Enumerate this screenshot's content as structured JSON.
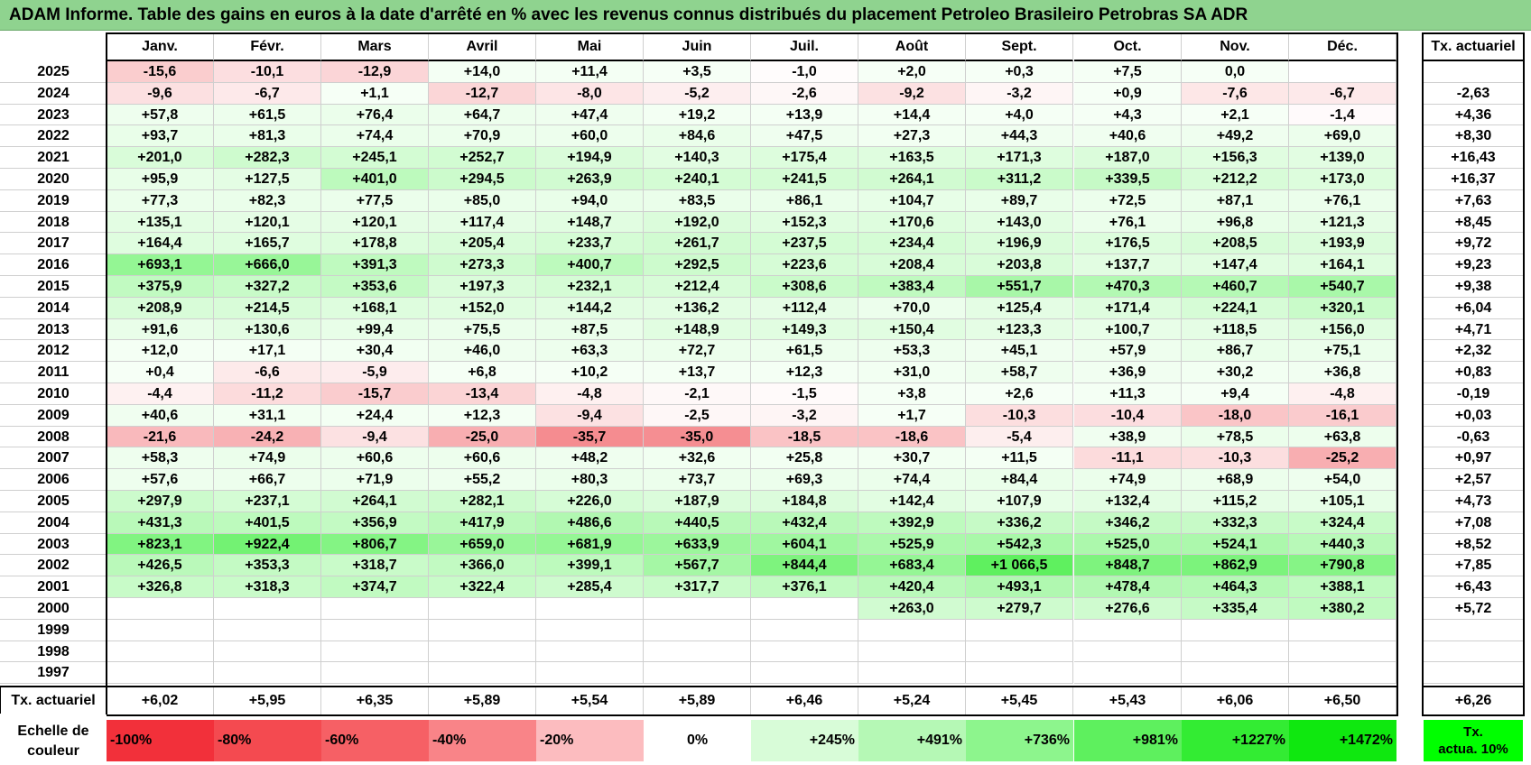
{
  "title": "ADAM Informe. Table des gains en euros à la date d'arrêté en % avec les revenus connus distribués du placement Petroleo Brasileiro Petrobras SA ADR",
  "months": [
    "Janv.",
    "Févr.",
    "Mars",
    "Avril",
    "Mai",
    "Juin",
    "Juil.",
    "Août",
    "Sept.",
    "Oct.",
    "Nov.",
    "Déc."
  ],
  "rate_header": "Tx. actuariel",
  "rows": [
    {
      "year": "2025",
      "values": [
        "-15,6",
        "-10,1",
        "-12,9",
        "+14,0",
        "+11,4",
        "+3,5",
        "-1,0",
        "+2,0",
        "+0,3",
        "+7,5",
        "0,0",
        ""
      ],
      "rate": ""
    },
    {
      "year": "2024",
      "values": [
        "-9,6",
        "-6,7",
        "+1,1",
        "-12,7",
        "-8,0",
        "-5,2",
        "-2,6",
        "-9,2",
        "-3,2",
        "+0,9",
        "-7,6",
        "-6,7"
      ],
      "rate": "-2,63"
    },
    {
      "year": "2023",
      "values": [
        "+57,8",
        "+61,5",
        "+76,4",
        "+64,7",
        "+47,4",
        "+19,2",
        "+13,9",
        "+14,4",
        "+4,0",
        "+4,3",
        "+2,1",
        "-1,4"
      ],
      "rate": "+4,36"
    },
    {
      "year": "2022",
      "values": [
        "+93,7",
        "+81,3",
        "+74,4",
        "+70,9",
        "+60,0",
        "+84,6",
        "+47,5",
        "+27,3",
        "+44,3",
        "+40,6",
        "+49,2",
        "+69,0"
      ],
      "rate": "+8,30"
    },
    {
      "year": "2021",
      "values": [
        "+201,0",
        "+282,3",
        "+245,1",
        "+252,7",
        "+194,9",
        "+140,3",
        "+175,4",
        "+163,5",
        "+171,3",
        "+187,0",
        "+156,3",
        "+139,0"
      ],
      "rate": "+16,43"
    },
    {
      "year": "2020",
      "values": [
        "+95,9",
        "+127,5",
        "+401,0",
        "+294,5",
        "+263,9",
        "+240,1",
        "+241,5",
        "+264,1",
        "+311,2",
        "+339,5",
        "+212,2",
        "+173,0"
      ],
      "rate": "+16,37"
    },
    {
      "year": "2019",
      "values": [
        "+77,3",
        "+82,3",
        "+77,5",
        "+85,0",
        "+94,0",
        "+83,5",
        "+86,1",
        "+104,7",
        "+89,7",
        "+72,5",
        "+87,1",
        "+76,1"
      ],
      "rate": "+7,63"
    },
    {
      "year": "2018",
      "values": [
        "+135,1",
        "+120,1",
        "+120,1",
        "+117,4",
        "+148,7",
        "+192,0",
        "+152,3",
        "+170,6",
        "+143,0",
        "+76,1",
        "+96,8",
        "+121,3"
      ],
      "rate": "+8,45"
    },
    {
      "year": "2017",
      "values": [
        "+164,4",
        "+165,7",
        "+178,8",
        "+205,4",
        "+233,7",
        "+261,7",
        "+237,5",
        "+234,4",
        "+196,9",
        "+176,5",
        "+208,5",
        "+193,9"
      ],
      "rate": "+9,72"
    },
    {
      "year": "2016",
      "values": [
        "+693,1",
        "+666,0",
        "+391,3",
        "+273,3",
        "+400,7",
        "+292,5",
        "+223,6",
        "+208,4",
        "+203,8",
        "+137,7",
        "+147,4",
        "+164,1"
      ],
      "rate": "+9,23"
    },
    {
      "year": "2015",
      "values": [
        "+375,9",
        "+327,2",
        "+353,6",
        "+197,3",
        "+232,1",
        "+212,4",
        "+308,6",
        "+383,4",
        "+551,7",
        "+470,3",
        "+460,7",
        "+540,7"
      ],
      "rate": "+9,38"
    },
    {
      "year": "2014",
      "values": [
        "+208,9",
        "+214,5",
        "+168,1",
        "+152,0",
        "+144,2",
        "+136,2",
        "+112,4",
        "+70,0",
        "+125,4",
        "+171,4",
        "+224,1",
        "+320,1"
      ],
      "rate": "+6,04"
    },
    {
      "year": "2013",
      "values": [
        "+91,6",
        "+130,6",
        "+99,4",
        "+75,5",
        "+87,5",
        "+148,9",
        "+149,3",
        "+150,4",
        "+123,3",
        "+100,7",
        "+118,5",
        "+156,0"
      ],
      "rate": "+4,71"
    },
    {
      "year": "2012",
      "values": [
        "+12,0",
        "+17,1",
        "+30,4",
        "+46,0",
        "+63,3",
        "+72,7",
        "+61,5",
        "+53,3",
        "+45,1",
        "+57,9",
        "+86,7",
        "+75,1"
      ],
      "rate": "+2,32"
    },
    {
      "year": "2011",
      "values": [
        "+0,4",
        "-6,6",
        "-5,9",
        "+6,8",
        "+10,2",
        "+13,7",
        "+12,3",
        "+31,0",
        "+58,7",
        "+36,9",
        "+30,2",
        "+36,8"
      ],
      "rate": "+0,83"
    },
    {
      "year": "2010",
      "values": [
        "-4,4",
        "-11,2",
        "-15,7",
        "-13,4",
        "-4,8",
        "-2,1",
        "-1,5",
        "+3,8",
        "+2,6",
        "+11,3",
        "+9,4",
        "-4,8"
      ],
      "rate": "-0,19"
    },
    {
      "year": "2009",
      "values": [
        "+40,6",
        "+31,1",
        "+24,4",
        "+12,3",
        "-9,4",
        "-2,5",
        "-3,2",
        "+1,7",
        "-10,3",
        "-10,4",
        "-18,0",
        "-16,1"
      ],
      "rate": "+0,03"
    },
    {
      "year": "2008",
      "values": [
        "-21,6",
        "-24,2",
        "-9,4",
        "-25,0",
        "-35,7",
        "-35,0",
        "-18,5",
        "-18,6",
        "-5,4",
        "+38,9",
        "+78,5",
        "+63,8"
      ],
      "rate": "-0,63"
    },
    {
      "year": "2007",
      "values": [
        "+58,3",
        "+74,9",
        "+60,6",
        "+60,6",
        "+48,2",
        "+32,6",
        "+25,8",
        "+30,7",
        "+11,5",
        "-11,1",
        "-10,3",
        "-25,2"
      ],
      "rate": "+0,97"
    },
    {
      "year": "2006",
      "values": [
        "+57,6",
        "+66,7",
        "+71,9",
        "+55,2",
        "+80,3",
        "+73,7",
        "+69,3",
        "+74,4",
        "+84,4",
        "+74,9",
        "+68,9",
        "+54,0"
      ],
      "rate": "+2,57"
    },
    {
      "year": "2005",
      "values": [
        "+297,9",
        "+237,1",
        "+264,1",
        "+282,1",
        "+226,0",
        "+187,9",
        "+184,8",
        "+142,4",
        "+107,9",
        "+132,4",
        "+115,2",
        "+105,1"
      ],
      "rate": "+4,73"
    },
    {
      "year": "2004",
      "values": [
        "+431,3",
        "+401,5",
        "+356,9",
        "+417,9",
        "+486,6",
        "+440,5",
        "+432,4",
        "+392,9",
        "+336,2",
        "+346,2",
        "+332,3",
        "+324,4"
      ],
      "rate": "+7,08"
    },
    {
      "year": "2003",
      "values": [
        "+823,1",
        "+922,4",
        "+806,7",
        "+659,0",
        "+681,9",
        "+633,9",
        "+604,1",
        "+525,9",
        "+542,3",
        "+525,0",
        "+524,1",
        "+440,3"
      ],
      "rate": "+8,52"
    },
    {
      "year": "2002",
      "values": [
        "+426,5",
        "+353,3",
        "+318,7",
        "+366,0",
        "+399,1",
        "+567,7",
        "+844,4",
        "+683,4",
        "+1 066,5",
        "+848,7",
        "+862,9",
        "+790,8"
      ],
      "rate": "+7,85"
    },
    {
      "year": "2001",
      "values": [
        "+326,8",
        "+318,3",
        "+374,7",
        "+322,4",
        "+285,4",
        "+317,7",
        "+376,1",
        "+420,4",
        "+493,1",
        "+478,4",
        "+464,3",
        "+388,1"
      ],
      "rate": "+6,43"
    },
    {
      "year": "2000",
      "values": [
        "",
        "",
        "",
        "",
        "",
        "",
        "",
        "+263,0",
        "+279,7",
        "+276,6",
        "+335,4",
        "+380,2"
      ],
      "rate": "+5,72"
    },
    {
      "year": "1999",
      "values": [
        "",
        "",
        "",
        "",
        "",
        "",
        "",
        "",
        "",
        "",
        "",
        ""
      ],
      "rate": ""
    },
    {
      "year": "1998",
      "values": [
        "",
        "",
        "",
        "",
        "",
        "",
        "",
        "",
        "",
        "",
        "",
        ""
      ],
      "rate": ""
    },
    {
      "year": "1997",
      "values": [
        "",
        "",
        "",
        "",
        "",
        "",
        "",
        "",
        "",
        "",
        "",
        ""
      ],
      "rate": ""
    }
  ],
  "footer": {
    "label": "Tx. actuariel",
    "values": [
      "+6,02",
      "+5,95",
      "+6,35",
      "+5,89",
      "+5,54",
      "+5,89",
      "+6,46",
      "+5,24",
      "+5,45",
      "+5,43",
      "+6,06",
      "+6,50"
    ],
    "rate": "+6,26"
  },
  "scale": {
    "label_line1": "Echelle de",
    "label_line2": "couleur",
    "items": [
      {
        "label": "-100%",
        "color": "#f2303a"
      },
      {
        "label": "-80%",
        "color": "#f44a50"
      },
      {
        "label": "-60%",
        "color": "#f66065"
      },
      {
        "label": "-40%",
        "color": "#f98488"
      },
      {
        "label": "-20%",
        "color": "#fcbcbf"
      },
      {
        "label": "0%",
        "color": "#ffffff"
      },
      {
        "label": "+245%",
        "color": "#d8fcd8"
      },
      {
        "label": "+491%",
        "color": "#b5f8b5"
      },
      {
        "label": "+736%",
        "color": "#8df58d"
      },
      {
        "label": "+981%",
        "color": "#5ef05e"
      },
      {
        "label": "+1227%",
        "color": "#33ec33"
      },
      {
        "label": "+1472%",
        "color": "#0fe80f"
      }
    ],
    "rate_line1": "Tx.",
    "rate_line2": "actua. 10%",
    "rate_color": "#00ff00"
  },
  "colors": {
    "title_bg": "#8fd38f",
    "negative_max": "#f2303a",
    "positive_max": "#0fe80f"
  }
}
